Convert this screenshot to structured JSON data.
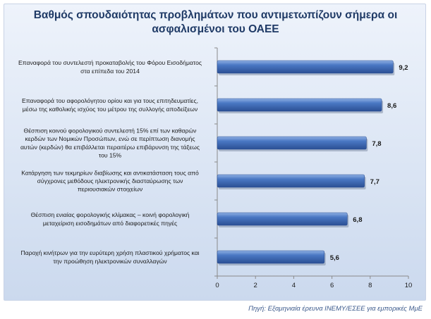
{
  "chart_data": {
    "type": "bar",
    "orientation": "horizontal",
    "title_lines": [
      "Βαθμός σπουδαιότητας προβλημάτων που αντιμετωπίζουν σήμερα οι",
      "ασφαλισμένοι του ΟΑΕΕ"
    ],
    "categories": [
      [
        "Επαναφορά του συντελεστή προκαταβολής του Φόρου Εισοδήματος",
        "στα επίπεδα του 2014"
      ],
      [
        "Επαναφορά του αφορολόγητου ορίου και για τους επιτηδευματίες,",
        "μέσω της καθολικής ισχύος του μέτρου της συλλογής αποδείξεων"
      ],
      [
        "Θέσπιση κοινού φορολογικού συντελεστή 15% επί των καθαρών",
        "κερδών των Νομικών Προσώπων, ενώ σε περίπτωση διανομής",
        "αυτών (κερδών) θα επιβάλλεται περαιτέρω επιβάρυνση της τάξεως",
        "του 15%"
      ],
      [
        "Κατάργηση των τεκμηρίων διαβίωσης και αντικατάσταση τους από",
        "σύγχρονες μεθόδους ηλεκτρονικής διασταύρωσης των",
        "περιουσιακών στοιχείων"
      ],
      [
        "Θέσπιση ενιαίας φορολογικής κλίμακας – κοινή φορολογική",
        "μεταχείριση εισοδημάτων από διαφορετικές πηγές"
      ],
      [
        "Παροχή κινήτρων για την ευρύτερη χρήση πλαστικού χρήματος και",
        "την προώθηση ηλεκτρονικών συναλλαγών"
      ]
    ],
    "values": [
      9.2,
      8.6,
      7.8,
      7.7,
      6.8,
      5.6
    ],
    "value_labels": [
      "9,2",
      "8,6",
      "7,8",
      "7,7",
      "6,8",
      "5,6"
    ],
    "xlim": [
      0,
      10
    ],
    "x_ticks": [
      0,
      2,
      4,
      6,
      8,
      10
    ],
    "grid": false,
    "legend": "none",
    "colors": {
      "bar_light": "#8fb0e3",
      "bar_mid": "#4a78c4",
      "bar_dark": "#2b4f94",
      "title": "#1f3a66",
      "source": "#3c5a8c"
    }
  },
  "source_note": "Πηγή: Εξαμηνιαία έρευνα ΙΝΕΜΥ/ΕΣΕΕ για εμπορικές ΜμΕ"
}
